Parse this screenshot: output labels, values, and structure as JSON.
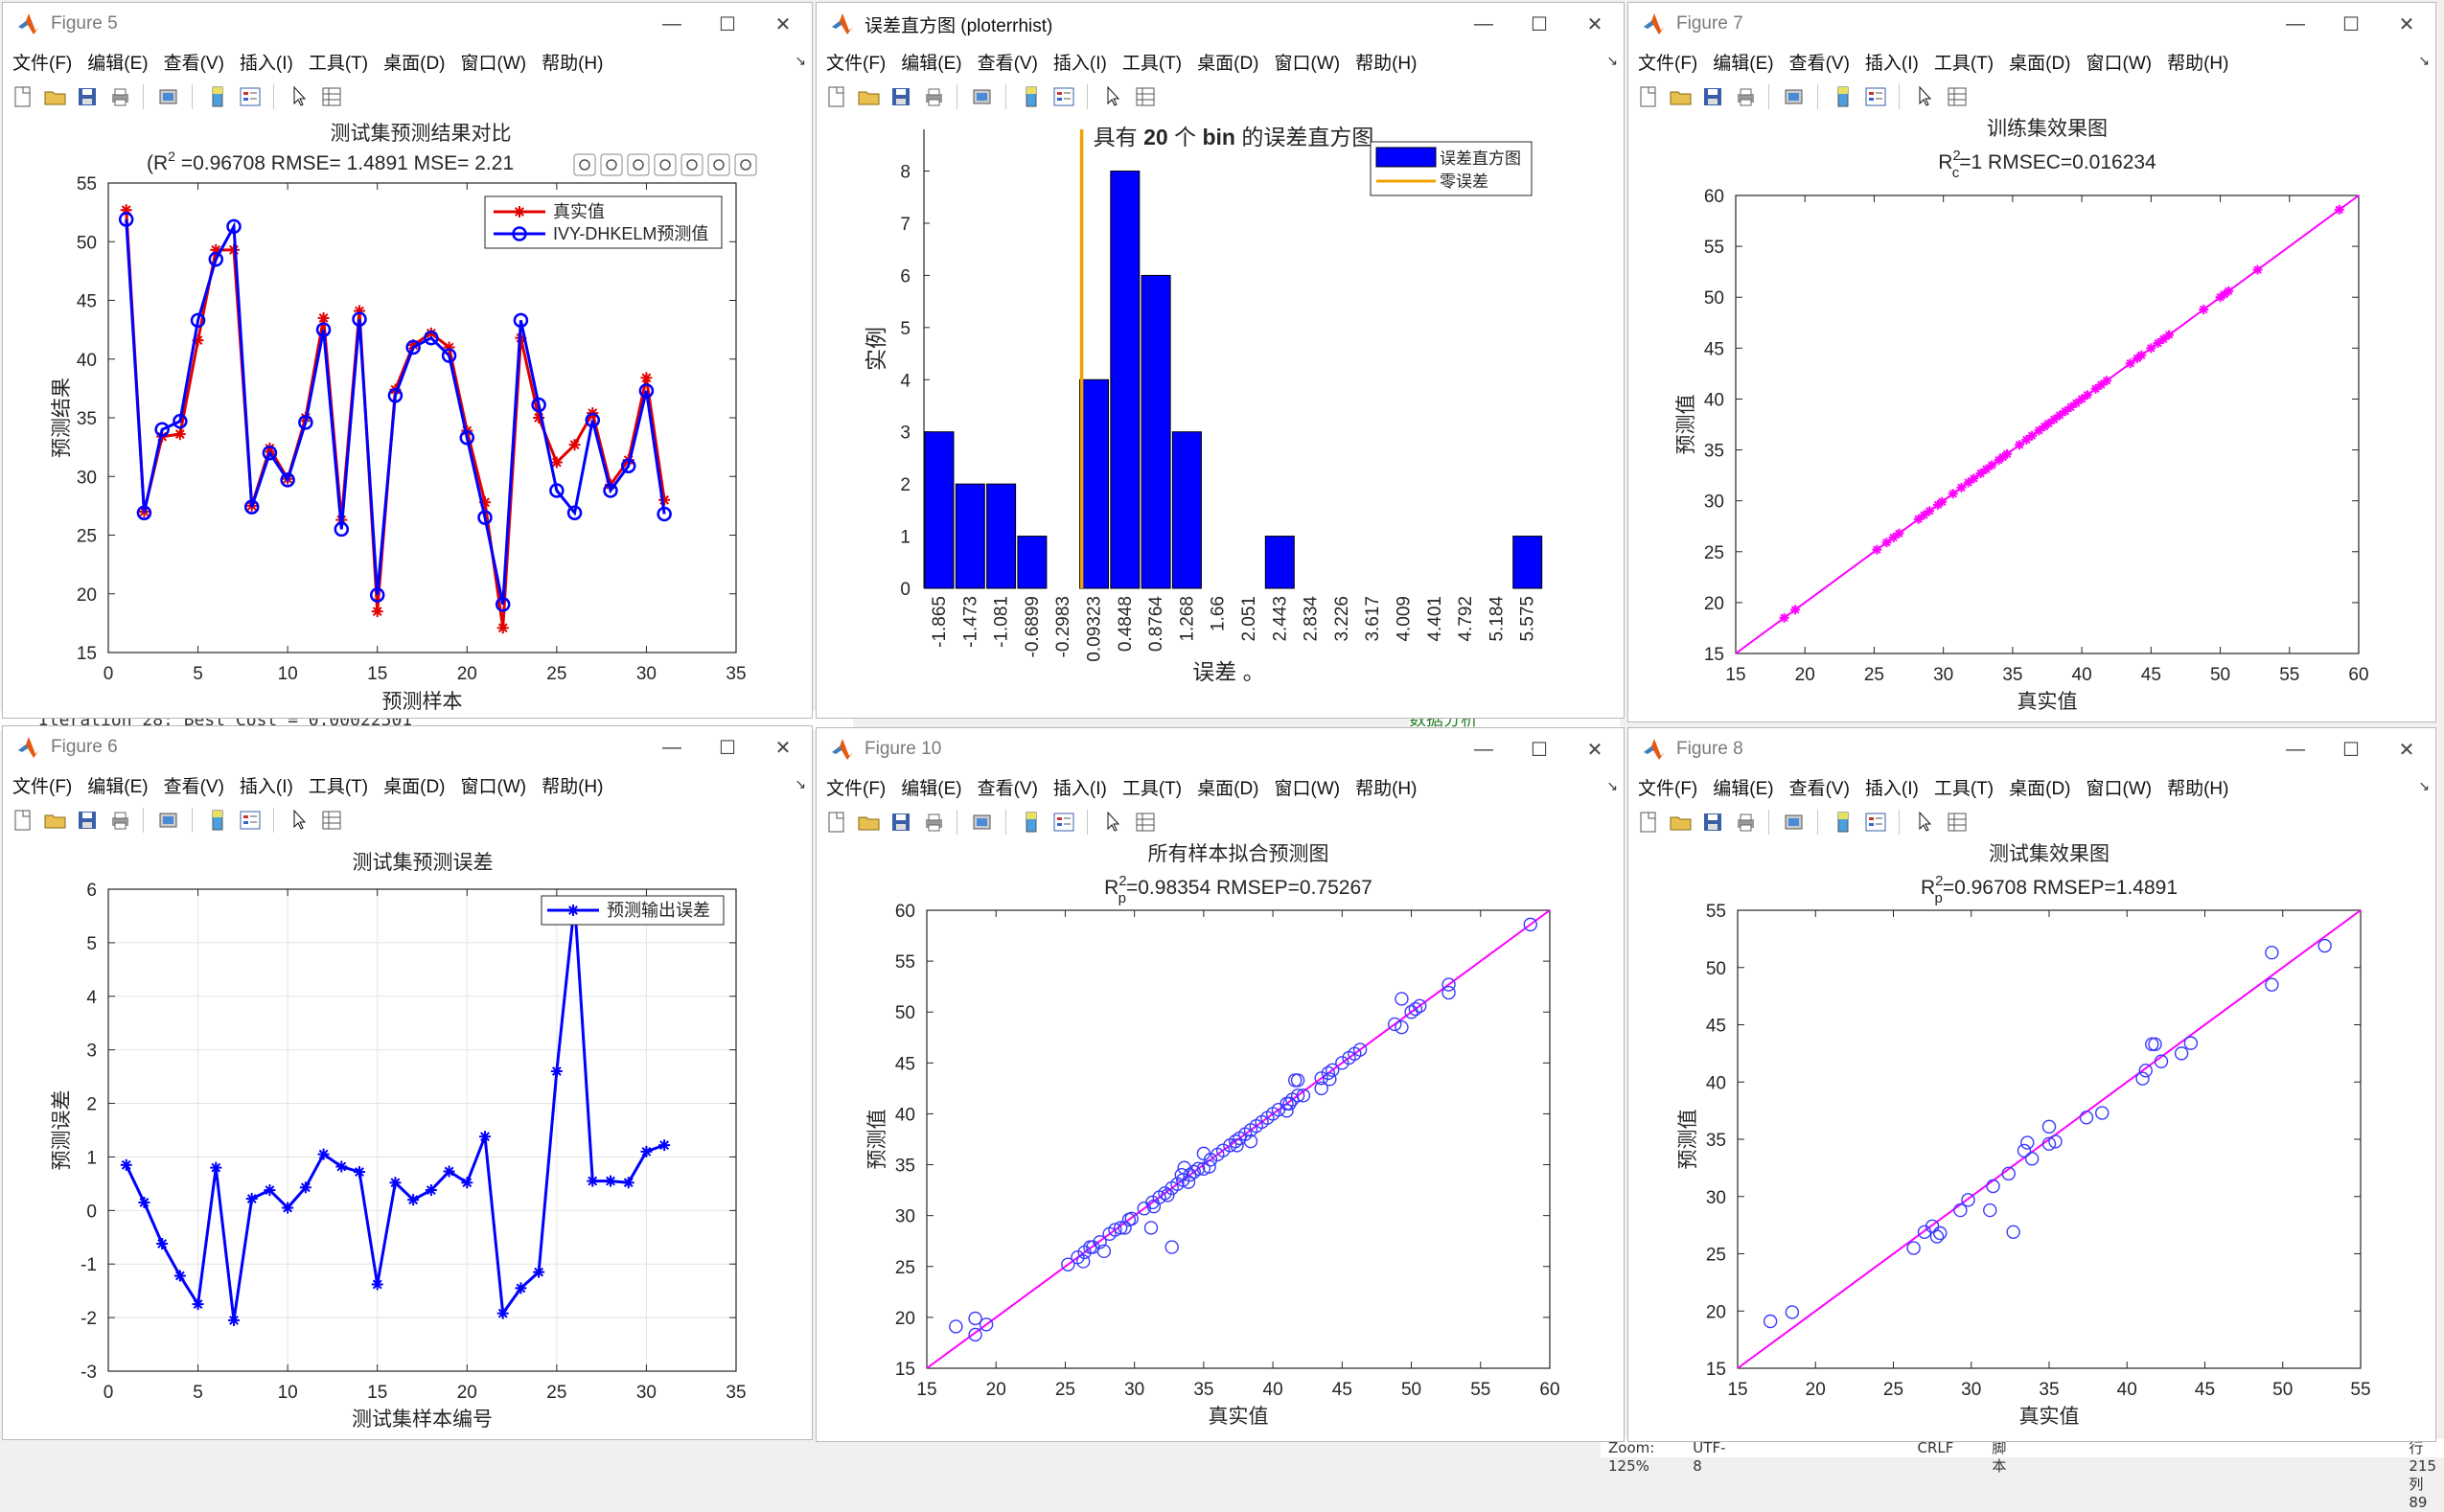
{
  "windows": {
    "fig5": {
      "title": "Figure 5",
      "menu": [
        "文件(F)",
        "编辑(E)",
        "查看(V)",
        "插入(I)",
        "工具(T)",
        "桌面(D)",
        "窗口(W)",
        "帮助(H)"
      ],
      "chart_title": "测试集预测结果对比",
      "subtitle": "(R",
      "subtitle_sup": "2",
      "subtitle_rest": " =0.96708 RMSE= 1.4891 MSE= 2.21",
      "xlabel": "预测样本",
      "ylabel": "预测结果",
      "legend": [
        "真实值",
        "IVY-DHKELM预测值"
      ]
    },
    "fig_hist": {
      "title": "误差直方图 (ploterrhist)",
      "menu": [
        "文件(F)",
        "编辑(E)",
        "查看(V)",
        "插入(I)",
        "工具(T)",
        "桌面(D)",
        "窗口(W)",
        "帮助(H)"
      ],
      "chart_title_a": "具有 ",
      "chart_title_b": "20",
      "chart_title_c": " 个 ",
      "chart_title_d": "bin",
      "chart_title_e": " 的误差直方图",
      "xlabel": "误差 。",
      "ylabel": "实例",
      "legend": [
        "误差直方图",
        "零误差"
      ]
    },
    "fig7": {
      "title": "Figure 7",
      "menu": [
        "文件(F)",
        "编辑(E)",
        "查看(V)",
        "插入(I)",
        "工具(T)",
        "桌面(D)",
        "窗口(W)",
        "帮助(H)"
      ],
      "chart_title": "训练集效果图",
      "subtitle_a": "R",
      "subtitle_sup": "2",
      "subtitle_sub": "c",
      "subtitle_b": "=1  RMSEC=0.016234",
      "xlabel": "真实值",
      "ylabel": "预测值"
    },
    "fig6": {
      "title": "Figure 6",
      "menu": [
        "文件(F)",
        "编辑(E)",
        "查看(V)",
        "插入(I)",
        "工具(T)",
        "桌面(D)",
        "窗口(W)",
        "帮助(H)"
      ],
      "chart_title": "测试集预测误差",
      "xlabel": "测试集样本编号",
      "ylabel": "预测误差",
      "legend": [
        "预测输出误差"
      ]
    },
    "fig10": {
      "title": "Figure 10",
      "menu": [
        "文件(F)",
        "编辑(E)",
        "查看(V)",
        "插入(I)",
        "工具(T)",
        "桌面(D)",
        "窗口(W)",
        "帮助(H)"
      ],
      "chart_title": "所有样本拟合预测图",
      "subtitle_a": "R",
      "subtitle_sup": "2",
      "subtitle_sub": "p",
      "subtitle_b": "=0.98354  RMSEP=0.75267",
      "xlabel": "真实值",
      "ylabel": "预测值"
    },
    "fig8": {
      "title": "Figure 8",
      "menu": [
        "文件(F)",
        "编辑(E)",
        "查看(V)",
        "插入(I)",
        "工具(T)",
        "桌面(D)",
        "窗口(W)",
        "帮助(H)"
      ],
      "chart_title": "测试集效果图",
      "subtitle_a": "R",
      "subtitle_sup": "2",
      "subtitle_sub": "p",
      "subtitle_b": "=0.96708  RMSEP=1.4891",
      "xlabel": "真实值",
      "ylabel": "预测值"
    }
  },
  "background": {
    "console_line": "Iteration 28: Best Cost = 0.00022501",
    "status_zoom": "Zoom: 125%",
    "status_enc": "UTF-8",
    "status_eol": "CRLF",
    "status_type": "脚本",
    "status_pos": "行 215   列 89",
    "side_text": "数据分析"
  },
  "colors": {
    "red": "#e00000",
    "blue": "#0000ff",
    "magenta": "#ff00ff",
    "orange": "#f0a000",
    "accent": "#0099ff"
  },
  "chart_data": [
    {
      "id": "fig5",
      "type": "line",
      "title": "测试集预测结果对比",
      "xlabel": "预测样本",
      "ylabel": "预测结果",
      "xlim": [
        0,
        35
      ],
      "ylim": [
        15,
        55
      ],
      "xticks": [
        0,
        5,
        10,
        15,
        20,
        25,
        30,
        35
      ],
      "yticks": [
        15,
        20,
        25,
        30,
        35,
        40,
        45,
        50,
        55
      ],
      "x": [
        1,
        2,
        3,
        4,
        5,
        6,
        7,
        8,
        9,
        10,
        11,
        12,
        13,
        14,
        15,
        16,
        17,
        18,
        19,
        20,
        21,
        22,
        23,
        24,
        25,
        26,
        27,
        28,
        29,
        30,
        31
      ],
      "series": [
        {
          "name": "真实值",
          "values": [
            52.7,
            27.0,
            33.4,
            33.6,
            41.6,
            49.3,
            49.3,
            27.5,
            32.4,
            29.8,
            35.0,
            43.5,
            26.3,
            44.1,
            18.5,
            37.4,
            41.2,
            42.2,
            41.0,
            33.9,
            27.8,
            17.1,
            41.8,
            35.0,
            31.2,
            32.7,
            35.4,
            29.3,
            31.4,
            38.4,
            28.0
          ]
        },
        {
          "name": "IVY-DHKELM预测值",
          "values": [
            51.9,
            26.9,
            34.0,
            34.7,
            43.3,
            48.5,
            51.3,
            27.4,
            32.0,
            29.7,
            34.6,
            42.5,
            25.5,
            43.4,
            19.9,
            36.9,
            41.0,
            41.8,
            40.3,
            33.3,
            26.5,
            19.1,
            43.3,
            36.1,
            28.8,
            26.9,
            34.8,
            28.8,
            30.9,
            37.3,
            26.8
          ]
        }
      ]
    },
    {
      "id": "fig_hist",
      "type": "bar",
      "title": "具有 20 个 bin 的误差直方图",
      "xlabel": "误差 。",
      "ylabel": "实例",
      "ylim": [
        0,
        8.8
      ],
      "yticks": [
        0,
        1,
        2,
        3,
        4,
        5,
        6,
        7,
        8
      ],
      "categories": [
        "-1.865",
        "-1.473",
        "-1.081",
        "-0.6899",
        "-0.2983",
        "0.09323",
        "0.4848",
        "0.8764",
        "1.268",
        "1.66",
        "2.051",
        "2.443",
        "2.834",
        "3.226",
        "3.617",
        "4.009",
        "4.401",
        "4.792",
        "5.184",
        "5.575"
      ],
      "values": [
        3,
        2,
        2,
        1,
        0,
        4,
        8,
        6,
        3,
        0,
        0,
        1,
        0,
        0,
        0,
        0,
        0,
        0,
        0,
        1
      ],
      "zero_error_position": 4.6,
      "legend": [
        "误差直方图",
        "零误差"
      ]
    },
    {
      "id": "fig7",
      "type": "scatter",
      "title": "训练集效果图",
      "xlabel": "真实值",
      "ylabel": "预测值",
      "xlim": [
        15,
        60
      ],
      "ylim": [
        15,
        60
      ],
      "ticks": [
        15,
        20,
        25,
        30,
        35,
        40,
        45,
        50,
        55,
        60
      ],
      "x": [
        18.5,
        19.3,
        25.2,
        25.9,
        26.4,
        26.8,
        28.2,
        28.6,
        29.0,
        29.6,
        29.9,
        30.7,
        31.3,
        31.8,
        32.2,
        32.7,
        33.1,
        33.5,
        34.0,
        34.3,
        34.6,
        35.5,
        36.0,
        36.4,
        36.9,
        37.3,
        37.6,
        38.0,
        38.4,
        38.8,
        39.2,
        39.6,
        40.0,
        40.4,
        41.0,
        41.4,
        41.8,
        43.5,
        44.0,
        44.3,
        45.0,
        45.5,
        45.9,
        46.3,
        48.8,
        50.0,
        50.3,
        50.6,
        52.7,
        58.6
      ],
      "y": [
        18.5,
        19.3,
        25.2,
        25.9,
        26.4,
        26.8,
        28.2,
        28.6,
        29.0,
        29.6,
        29.9,
        30.7,
        31.3,
        31.8,
        32.2,
        32.7,
        33.1,
        33.5,
        34.0,
        34.3,
        34.6,
        35.5,
        36.0,
        36.4,
        36.9,
        37.3,
        37.6,
        38.0,
        38.4,
        38.8,
        39.2,
        39.6,
        40.0,
        40.4,
        41.0,
        41.4,
        41.8,
        43.5,
        44.0,
        44.3,
        45.0,
        45.5,
        45.9,
        46.3,
        48.8,
        50.0,
        50.3,
        50.6,
        52.7,
        58.6
      ]
    },
    {
      "id": "fig6",
      "type": "line",
      "title": "测试集预测误差",
      "xlabel": "测试集样本编号",
      "ylabel": "预测误差",
      "xlim": [
        0,
        35
      ],
      "ylim": [
        -3,
        6
      ],
      "xticks": [
        0,
        5,
        10,
        15,
        20,
        25,
        30,
        35
      ],
      "yticks": [
        -3,
        -2,
        -1,
        0,
        1,
        2,
        3,
        4,
        5,
        6
      ],
      "x": [
        1,
        2,
        3,
        4,
        5,
        6,
        7,
        8,
        9,
        10,
        11,
        12,
        13,
        14,
        15,
        16,
        17,
        18,
        19,
        20,
        21,
        22,
        23,
        24,
        25,
        26,
        27,
        28,
        29,
        30,
        31
      ],
      "series": [
        {
          "name": "预测输出误差",
          "values": [
            0.85,
            0.15,
            -0.62,
            -1.22,
            -1.75,
            0.8,
            -2.05,
            0.22,
            0.38,
            0.05,
            0.43,
            1.05,
            0.82,
            0.72,
            -1.38,
            0.52,
            0.2,
            0.38,
            0.73,
            0.52,
            1.38,
            -1.92,
            -1.45,
            -1.15,
            2.6,
            5.75,
            0.55,
            0.55,
            0.52,
            1.1,
            1.22
          ]
        }
      ]
    },
    {
      "id": "fig10",
      "type": "scatter",
      "title": "所有样本拟合预测图",
      "xlabel": "真实值",
      "ylabel": "预测值",
      "xlim": [
        15,
        60
      ],
      "ylim": [
        15,
        60
      ],
      "ticks": [
        15,
        20,
        25,
        30,
        35,
        40,
        45,
        50,
        55,
        60
      ],
      "x": [
        17.1,
        18.5,
        18.5,
        19.3,
        25.2,
        25.9,
        26.3,
        26.4,
        26.8,
        27.0,
        27.5,
        27.8,
        28.2,
        28.6,
        29.0,
        29.3,
        29.6,
        29.8,
        30.7,
        31.2,
        31.3,
        31.4,
        31.8,
        32.2,
        32.4,
        32.7,
        32.7,
        33.1,
        33.4,
        33.5,
        33.6,
        33.9,
        34.0,
        34.3,
        34.6,
        35.0,
        35.0,
        35.4,
        35.5,
        36.0,
        36.4,
        36.9,
        37.3,
        37.4,
        37.6,
        38.0,
        38.4,
        38.4,
        38.8,
        39.2,
        39.6,
        40.0,
        40.4,
        41.0,
        41.0,
        41.2,
        41.4,
        41.6,
        41.8,
        41.8,
        42.2,
        43.5,
        43.5,
        44.0,
        44.1,
        44.3,
        45.0,
        45.5,
        45.9,
        46.3,
        48.8,
        49.3,
        49.3,
        50.0,
        50.3,
        50.6,
        52.7,
        52.7,
        58.6
      ],
      "y": [
        19.1,
        18.3,
        19.9,
        19.3,
        25.2,
        25.9,
        25.5,
        26.4,
        26.9,
        26.9,
        27.4,
        26.5,
        28.2,
        28.6,
        28.8,
        28.8,
        29.6,
        29.7,
        30.7,
        28.8,
        31.3,
        30.9,
        31.8,
        32.2,
        32.0,
        26.9,
        32.7,
        33.1,
        34.0,
        33.5,
        34.7,
        33.3,
        34.0,
        34.3,
        34.6,
        34.6,
        36.1,
        34.8,
        35.5,
        36.0,
        36.4,
        36.9,
        37.3,
        36.9,
        37.6,
        38.0,
        37.3,
        38.4,
        38.8,
        39.2,
        39.6,
        40.0,
        40.4,
        40.3,
        41.0,
        41.0,
        41.4,
        43.3,
        43.3,
        41.8,
        41.8,
        42.5,
        43.5,
        44.0,
        43.4,
        44.3,
        45.0,
        45.5,
        45.9,
        46.3,
        48.8,
        48.5,
        51.3,
        50.0,
        50.3,
        50.6,
        51.9,
        52.7,
        58.6
      ]
    },
    {
      "id": "fig8",
      "type": "scatter",
      "title": "测试集效果图",
      "xlabel": "真实值",
      "ylabel": "预测值",
      "xlim": [
        15,
        55
      ],
      "ylim": [
        15,
        55
      ],
      "ticks": [
        15,
        20,
        25,
        30,
        35,
        40,
        45,
        50,
        55
      ],
      "x": [
        52.7,
        27.0,
        33.4,
        33.6,
        41.6,
        49.3,
        49.3,
        27.5,
        32.4,
        29.8,
        35.0,
        43.5,
        26.3,
        44.1,
        18.5,
        37.4,
        41.2,
        42.2,
        41.0,
        33.9,
        27.8,
        17.1,
        41.8,
        35.0,
        31.2,
        32.7,
        35.4,
        29.3,
        31.4,
        38.4,
        28.0
      ],
      "y": [
        51.9,
        26.9,
        34.0,
        34.7,
        43.3,
        48.5,
        51.3,
        27.4,
        32.0,
        29.7,
        34.6,
        42.5,
        25.5,
        43.4,
        19.9,
        36.9,
        41.0,
        41.8,
        40.3,
        33.3,
        26.5,
        19.1,
        43.3,
        36.1,
        28.8,
        26.9,
        34.8,
        28.8,
        30.9,
        37.3,
        26.8
      ]
    }
  ]
}
